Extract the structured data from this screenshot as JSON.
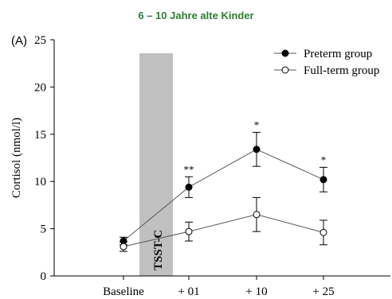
{
  "title": "6 – 10 Jahre alte Kinder",
  "panel_label": "(A)",
  "colors": {
    "title": "#2e7d32",
    "shaded": "#c0c0c0",
    "axis": "#000000"
  },
  "chart_data": {
    "type": "line",
    "title": "6 – 10 Jahre alte Kinder",
    "ylabel": "Cortisol (nmol/l)",
    "xlabel": "",
    "categories": [
      "Baseline",
      "+ 01",
      "+ 10",
      "+ 25"
    ],
    "ylim": [
      0,
      25
    ],
    "yticks": [
      0,
      5,
      10,
      15,
      20,
      25
    ],
    "grid": false,
    "legend_position": "top-right",
    "shaded_region": {
      "label": "TSST-C"
    },
    "series": [
      {
        "name": "Preterm group",
        "marker": "filled-circle",
        "values": [
          3.7,
          9.4,
          13.4,
          10.2
        ],
        "errors": [
          0.4,
          1.1,
          1.8,
          1.3
        ],
        "annotations": [
          "",
          "**",
          "*",
          "*"
        ]
      },
      {
        "name": "Full-term group",
        "marker": "open-circle",
        "values": [
          3.1,
          4.7,
          6.5,
          4.6
        ],
        "errors": [
          0.5,
          1.0,
          1.8,
          1.3
        ],
        "annotations": [
          "",
          "",
          "",
          ""
        ]
      }
    ]
  }
}
